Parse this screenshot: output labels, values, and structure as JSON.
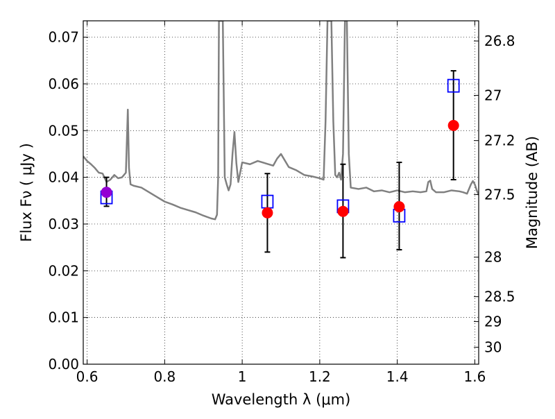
{
  "chart_data": {
    "type": "scatter",
    "title": "",
    "xlabel": "Wavelength  λ (μm)",
    "ylabel": "Flux  Fν  ( μJy )",
    "ylabel_right": "Magnitude (AB)",
    "xlim": [
      0.59,
      1.61
    ],
    "ylim": [
      0.0,
      0.0735
    ],
    "grid": true,
    "x_ticks": [
      {
        "value": 0.6,
        "label": "0.6"
      },
      {
        "value": 0.8,
        "label": "0.8"
      },
      {
        "value": 1.0,
        "label": "1"
      },
      {
        "value": 1.2,
        "label": "1.2"
      },
      {
        "value": 1.4,
        "label": "1.4"
      },
      {
        "value": 1.6,
        "label": "1.6"
      }
    ],
    "y_ticks": [
      {
        "value": 0.0,
        "label": "0.00"
      },
      {
        "value": 0.01,
        "label": "0.01"
      },
      {
        "value": 0.02,
        "label": "0.02"
      },
      {
        "value": 0.03,
        "label": "0.03"
      },
      {
        "value": 0.04,
        "label": "0.04"
      },
      {
        "value": 0.05,
        "label": "0.05"
      },
      {
        "value": 0.06,
        "label": "0.06"
      },
      {
        "value": 0.07,
        "label": "0.07"
      }
    ],
    "mag_ticks": [
      {
        "mag": 26.8,
        "label": "26.8"
      },
      {
        "mag": 27.0,
        "label": "27"
      },
      {
        "mag": 27.2,
        "label": "27.2"
      },
      {
        "mag": 27.5,
        "label": "27.5"
      },
      {
        "mag": 28.0,
        "label": "28"
      },
      {
        "mag": 28.5,
        "label": "28.5"
      },
      {
        "mag": 29.0,
        "label": "29"
      },
      {
        "mag": 30.0,
        "label": "30"
      }
    ],
    "series": [
      {
        "kind": "line",
        "color": "#808080",
        "x": [
          0.59,
          0.6,
          0.61,
          0.62,
          0.63,
          0.64,
          0.65,
          0.66,
          0.67,
          0.68,
          0.69,
          0.7,
          0.705,
          0.708,
          0.712,
          0.72,
          0.74,
          0.76,
          0.78,
          0.8,
          0.82,
          0.84,
          0.86,
          0.88,
          0.9,
          0.92,
          0.93,
          0.935,
          0.938,
          0.94,
          0.942,
          0.944,
          0.946,
          0.948,
          0.95,
          0.955,
          0.96,
          0.965,
          0.97,
          0.975,
          0.98,
          0.985,
          0.99,
          1.0,
          1.02,
          1.04,
          1.06,
          1.08,
          1.09,
          1.1,
          1.12,
          1.14,
          1.16,
          1.18,
          1.2,
          1.21,
          1.215,
          1.22,
          1.225,
          1.23,
          1.235,
          1.24,
          1.245,
          1.25,
          1.255,
          1.26,
          1.265,
          1.27,
          1.275,
          1.28,
          1.3,
          1.32,
          1.34,
          1.36,
          1.38,
          1.4,
          1.42,
          1.44,
          1.46,
          1.475,
          1.48,
          1.485,
          1.49,
          1.5,
          1.52,
          1.54,
          1.56,
          1.57,
          1.58,
          1.59,
          1.595,
          1.6,
          1.605,
          1.61
        ],
        "y": [
          0.0445,
          0.0435,
          0.0428,
          0.042,
          0.041,
          0.0408,
          0.039,
          0.0395,
          0.0405,
          0.0398,
          0.04,
          0.041,
          0.0545,
          0.042,
          0.0385,
          0.0382,
          0.0378,
          0.0368,
          0.0358,
          0.0348,
          0.0342,
          0.0335,
          0.033,
          0.0325,
          0.0318,
          0.0312,
          0.031,
          0.032,
          0.04,
          0.0735,
          0.0735,
          0.0735,
          0.0735,
          0.0735,
          0.0735,
          0.04,
          0.0385,
          0.0372,
          0.0385,
          0.045,
          0.0497,
          0.043,
          0.039,
          0.0432,
          0.0428,
          0.0435,
          0.043,
          0.0425,
          0.044,
          0.045,
          0.0422,
          0.0415,
          0.0405,
          0.0402,
          0.0398,
          0.0395,
          0.052,
          0.0735,
          0.0735,
          0.0735,
          0.052,
          0.0405,
          0.04,
          0.041,
          0.0395,
          0.045,
          0.0735,
          0.0735,
          0.045,
          0.0378,
          0.0375,
          0.0378,
          0.037,
          0.0372,
          0.0368,
          0.0372,
          0.0368,
          0.037,
          0.0368,
          0.037,
          0.039,
          0.0393,
          0.0375,
          0.0368,
          0.0368,
          0.0372,
          0.037,
          0.0368,
          0.0365,
          0.0385,
          0.0392,
          0.0385,
          0.0372,
          0.0362
        ]
      },
      {
        "kind": "open-squares",
        "color": "#0000ff",
        "x": [
          0.65,
          1.065,
          1.26,
          1.405,
          1.545
        ],
        "y": [
          0.0357,
          0.0348,
          0.0338,
          0.0318,
          0.0596
        ]
      },
      {
        "kind": "filled-circles",
        "color": "#ff0000",
        "x": [
          1.065,
          1.26,
          1.405,
          1.545
        ],
        "y": [
          0.0324,
          0.0327,
          0.0337,
          0.0511
        ]
      },
      {
        "kind": "filled-circle",
        "color": "#9400d3",
        "x": [
          0.65
        ],
        "y": [
          0.0368
        ]
      },
      {
        "kind": "errorbars",
        "color": "#000000",
        "x": [
          0.65,
          1.065,
          1.26,
          1.405,
          1.545
        ],
        "ylow": [
          0.0338,
          0.024,
          0.0228,
          0.0245,
          0.0395
        ],
        "yhigh": [
          0.04,
          0.0408,
          0.0428,
          0.0432,
          0.0628
        ]
      }
    ]
  }
}
